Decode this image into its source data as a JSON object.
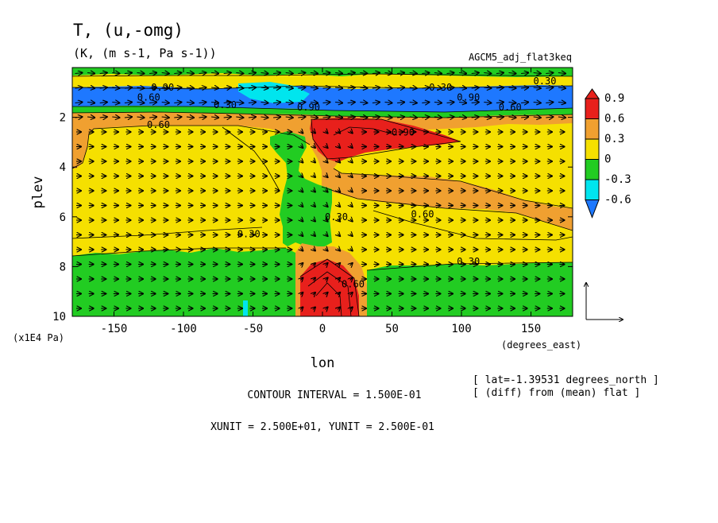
{
  "chart_data": {
    "type": "heatmap",
    "title": "T, (u,-omg)",
    "subtitle": "(K, (m s-1, Pa s-1))",
    "dataset": "AGCM5_adj_flat3keq",
    "xlabel": "lon",
    "ylabel": "plev",
    "x_unit_label": "(degrees_east)",
    "y_unit_label": "(x1E4 Pa)",
    "xlim": [
      -180,
      180
    ],
    "ylim": [
      10,
      0
    ],
    "x_ticks": [
      "-150",
      "-100",
      "-50",
      "0",
      "50",
      "100",
      "150"
    ],
    "x_tick_values": [
      -150,
      -100,
      -50,
      0,
      50,
      100,
      150
    ],
    "y_ticks": [
      "2",
      "4",
      "6",
      "8",
      "10"
    ],
    "y_tick_values": [
      2,
      4,
      6,
      8,
      10
    ],
    "colorbar": {
      "labels": [
        "0.9",
        "0.6",
        "0.3",
        "0",
        "-0.3",
        "-0.6"
      ],
      "levels": [
        0.9,
        0.6,
        0.3,
        0,
        -0.3,
        -0.6
      ],
      "colors": [
        "#e8201c",
        "#f0a030",
        "#f5e000",
        "#22cc22",
        "#00e5ee",
        "#1e78ff"
      ]
    },
    "contour_labels": [
      {
        "text": "0.90",
        "x": -115,
        "y": 0.8
      },
      {
        "text": "0.60",
        "x": -125,
        "y": 1.2
      },
      {
        "text": "0.30",
        "x": -70,
        "y": 1.5
      },
      {
        "text": "0.60",
        "x": -118,
        "y": 2.3
      },
      {
        "text": "0.90",
        "x": -10,
        "y": 1.6
      },
      {
        "text": "0.30",
        "x": 85,
        "y": 0.8
      },
      {
        "text": "0.90",
        "x": 58,
        "y": 2.6
      },
      {
        "text": "0.90",
        "x": 105,
        "y": 1.2
      },
      {
        "text": "0.30",
        "x": 160,
        "y": 0.55
      },
      {
        "text": "0.60",
        "x": 135,
        "y": 1.6
      },
      {
        "text": "0.60",
        "x": 72,
        "y": 5.9
      },
      {
        "text": "0.30",
        "x": -53,
        "y": 6.7
      },
      {
        "text": "0.30",
        "x": 10,
        "y": 6.0
      },
      {
        "text": "0.60",
        "x": 22,
        "y": 8.7
      },
      {
        "text": "0.30",
        "x": 105,
        "y": 7.8
      }
    ],
    "vector_reference": {
      "xunit": 25.0,
      "yunit": 0.25
    },
    "contour_interval": "CONTOUR INTERVAL = 1.500E-01",
    "units_line": "XUNIT = 2.500E+01, YUNIT = 2.500E-01",
    "lat_note": "[ lat=-1.39531 degrees_north ]",
    "diff_note": "[ (diff) from (mean) flat ]"
  }
}
